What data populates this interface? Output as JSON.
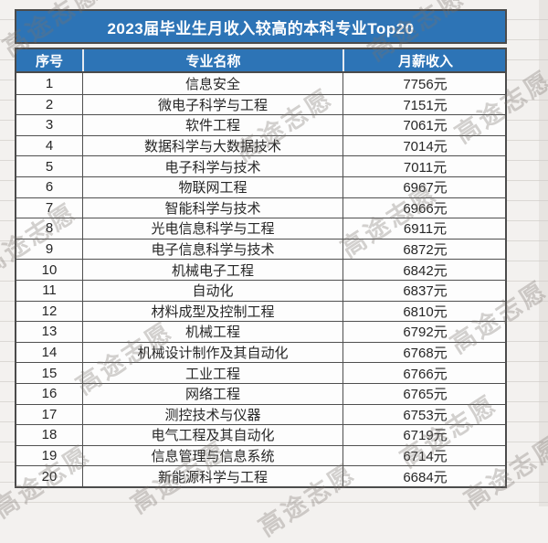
{
  "chart_data": {
    "type": "table",
    "title": "2023届毕业生月收入较高的本科专业Top20",
    "columns": [
      "序号",
      "专业名称",
      "月薪收入"
    ],
    "rows": [
      [
        "1",
        "信息安全",
        "7756元"
      ],
      [
        "2",
        "微电子科学与工程",
        "7151元"
      ],
      [
        "3",
        "软件工程",
        "7061元"
      ],
      [
        "4",
        "数据科学与大数据技术",
        "7014元"
      ],
      [
        "5",
        "电子科学与技术",
        "7011元"
      ],
      [
        "6",
        "物联网工程",
        "6967元"
      ],
      [
        "7",
        "智能科学与技术",
        "6966元"
      ],
      [
        "8",
        "光电信息科学与工程",
        "6911元"
      ],
      [
        "9",
        "电子信息科学与技术",
        "6872元"
      ],
      [
        "10",
        "机械电子工程",
        "6842元"
      ],
      [
        "11",
        "自动化",
        "6837元"
      ],
      [
        "12",
        "材料成型及控制工程",
        "6810元"
      ],
      [
        "13",
        "机械工程",
        "6792元"
      ],
      [
        "14",
        "机械设计制作及其自动化",
        "6768元"
      ],
      [
        "15",
        "工业工程",
        "6766元"
      ],
      [
        "16",
        "网络工程",
        "6765元"
      ],
      [
        "17",
        "测控技术与仪器",
        "6753元"
      ],
      [
        "18",
        "电气工程及其自动化",
        "6719元"
      ],
      [
        "19",
        "信息管理与信息系统",
        "6714元"
      ],
      [
        "20",
        "新能源科学与工程",
        "6684元"
      ]
    ]
  },
  "watermark": {
    "text": "高途志愿"
  },
  "colors": {
    "header_blue": "#2d74b6",
    "border_dark": "#4b4b4b",
    "cell_text": "#262626",
    "header_text": "#ffffff",
    "watermark_gray": "#7a746e",
    "page_background": "#f3f1ef"
  }
}
